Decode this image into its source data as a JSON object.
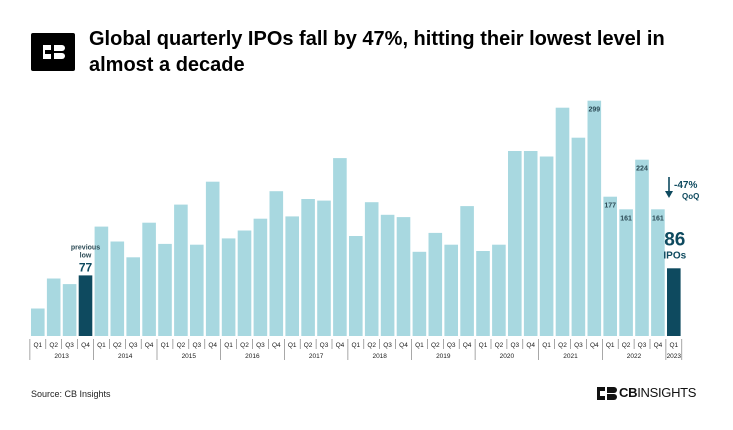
{
  "header": {
    "title": "Global quarterly IPOs fall by 47%, hitting their lowest level in almost a decade",
    "logo_icon": "cb-insights-logo-icon"
  },
  "footer": {
    "source": "Source: CB Insights",
    "brand_strong": "CB",
    "brand_light": "INSIGHTS"
  },
  "chart_data": {
    "type": "bar",
    "title": "Global quarterly IPOs fall by 47%, hitting their lowest level in almost a decade",
    "xlabel": "",
    "ylabel": "",
    "ylim": [
      0,
      310
    ],
    "grid": false,
    "legend": "none",
    "quarters": [
      "Q1",
      "Q2",
      "Q3",
      "Q4",
      "Q1",
      "Q2",
      "Q3",
      "Q4",
      "Q1",
      "Q2",
      "Q3",
      "Q4",
      "Q1",
      "Q2",
      "Q3",
      "Q4",
      "Q1",
      "Q2",
      "Q3",
      "Q4",
      "Q1",
      "Q2",
      "Q3",
      "Q4",
      "Q1",
      "Q2",
      "Q3",
      "Q4",
      "Q1",
      "Q2",
      "Q3",
      "Q4",
      "Q1",
      "Q2",
      "Q3",
      "Q4",
      "Q1",
      "Q2",
      "Q3",
      "Q4",
      "Q1"
    ],
    "years": [
      {
        "label": "2013",
        "count": 4
      },
      {
        "label": "2014",
        "count": 4
      },
      {
        "label": "2015",
        "count": 4
      },
      {
        "label": "2016",
        "count": 4
      },
      {
        "label": "2017",
        "count": 4
      },
      {
        "label": "2018",
        "count": 4
      },
      {
        "label": "2019",
        "count": 4
      },
      {
        "label": "2020",
        "count": 4
      },
      {
        "label": "2021",
        "count": 4
      },
      {
        "label": "2022",
        "count": 4
      },
      {
        "label": "2023",
        "count": 1
      }
    ],
    "values": [
      35,
      73,
      66,
      77,
      139,
      120,
      100,
      144,
      117,
      167,
      116,
      196,
      124,
      134,
      149,
      184,
      152,
      174,
      172,
      226,
      127,
      170,
      154,
      151,
      107,
      131,
      116,
      165,
      108,
      116,
      235,
      235,
      228,
      290,
      252,
      299,
      177,
      161,
      224,
      161,
      86
    ],
    "highlight_indices": [
      3,
      40
    ],
    "data_labels": [
      {
        "index": 35,
        "text": "299"
      },
      {
        "index": 36,
        "text": "177"
      },
      {
        "index": 37,
        "text": "161"
      },
      {
        "index": 38,
        "text": "224"
      },
      {
        "index": 39,
        "text": "161"
      }
    ],
    "annotations": {
      "previous_low_line1": "previous",
      "previous_low_line2": "low",
      "previous_low_value": "77",
      "current_value": "86",
      "current_unit": "IPOs",
      "change_pct": "-47%",
      "change_basis": "QoQ"
    },
    "colors": {
      "bar": "#a8d8e0",
      "highlight": "#0e4a5f",
      "label_dark": "#2b4a55",
      "axis_text": "#1a1a1a",
      "divider": "#6d6d6d"
    }
  }
}
